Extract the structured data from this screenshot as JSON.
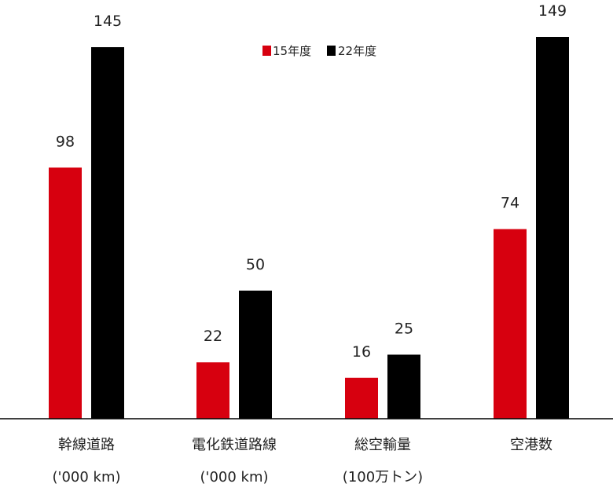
{
  "chart_data": {
    "type": "bar",
    "title": "",
    "xlabel": "",
    "ylabel": "",
    "ylim": [
      0,
      149
    ],
    "grid": false,
    "legend_position": "top-center",
    "categories": [
      {
        "name": "幹線道路",
        "unit": "('000 km)"
      },
      {
        "name": "電化鉄道路線",
        "unit": "('000 km)"
      },
      {
        "name": "総空輸量",
        "unit": "(100万トン)"
      },
      {
        "name": "空港数",
        "unit": ""
      }
    ],
    "series": [
      {
        "name": "15年度",
        "color": "#d7000f",
        "values": [
          98,
          22,
          16,
          74
        ]
      },
      {
        "name": "22年度",
        "color": "#000000",
        "values": [
          145,
          50,
          25,
          149
        ]
      }
    ]
  }
}
